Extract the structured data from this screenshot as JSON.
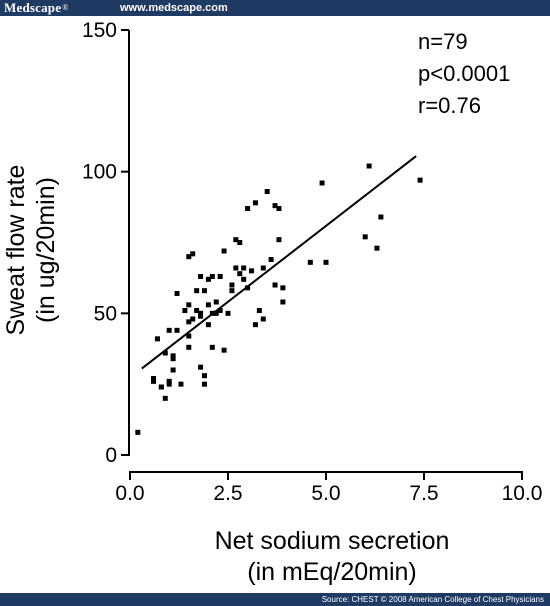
{
  "header": {
    "brand": "Medscape",
    "brand_mark": "®",
    "url": "www.medscape.com",
    "background": "#1f3a63"
  },
  "footer": {
    "source": "Source: CHEST © 2008 American College of Chest Physicians"
  },
  "chart_data": {
    "type": "scatter",
    "xlabel_lines": [
      "Net sodium secretion",
      "(in mEq/20min)"
    ],
    "ylabel_lines": [
      "Sweat flow rate",
      "(in ug/20min)"
    ],
    "xlim": [
      0,
      10
    ],
    "ylim": [
      0,
      150
    ],
    "x_ticks": [
      0,
      2.5,
      5,
      7.5,
      10
    ],
    "x_tick_labels": [
      "0.0",
      "2.5",
      "5.0",
      "7.5",
      "10.0"
    ],
    "y_ticks": [
      0,
      50,
      100,
      150
    ],
    "y_tick_labels": [
      "0",
      "50",
      "100",
      "150"
    ],
    "grid": false,
    "annotations": [
      "n=79",
      "p<0.0001",
      "r=0.76"
    ],
    "regression_line": {
      "x": [
        0.3,
        7.3
      ],
      "y": [
        30.5,
        105.5
      ]
    },
    "points": [
      [
        0.2,
        8
      ],
      [
        0.6,
        26
      ],
      [
        0.6,
        27
      ],
      [
        0.7,
        41
      ],
      [
        0.8,
        24
      ],
      [
        0.8,
        24
      ],
      [
        0.9,
        20
      ],
      [
        0.9,
        36
      ],
      [
        1.0,
        25
      ],
      [
        1.0,
        26
      ],
      [
        1.0,
        44
      ],
      [
        1.1,
        30
      ],
      [
        1.1,
        34
      ],
      [
        1.1,
        35
      ],
      [
        1.2,
        44
      ],
      [
        1.2,
        57
      ],
      [
        1.3,
        25
      ],
      [
        1.4,
        51
      ],
      [
        1.5,
        38
      ],
      [
        1.5,
        42
      ],
      [
        1.5,
        47
      ],
      [
        1.5,
        53
      ],
      [
        1.5,
        70
      ],
      [
        1.6,
        48
      ],
      [
        1.6,
        71
      ],
      [
        1.7,
        51
      ],
      [
        1.7,
        58
      ],
      [
        1.8,
        31
      ],
      [
        1.8,
        49
      ],
      [
        1.8,
        50
      ],
      [
        1.8,
        63
      ],
      [
        1.9,
        25
      ],
      [
        1.9,
        28
      ],
      [
        1.9,
        58
      ],
      [
        2.0,
        46
      ],
      [
        2.0,
        53
      ],
      [
        2.0,
        62
      ],
      [
        2.1,
        38
      ],
      [
        2.1,
        50
      ],
      [
        2.1,
        63
      ],
      [
        2.2,
        50
      ],
      [
        2.2,
        54
      ],
      [
        2.3,
        51
      ],
      [
        2.3,
        63
      ],
      [
        2.4,
        37
      ],
      [
        2.4,
        72
      ],
      [
        2.5,
        50
      ],
      [
        2.6,
        58
      ],
      [
        2.6,
        60
      ],
      [
        2.7,
        66
      ],
      [
        2.7,
        76
      ],
      [
        2.8,
        64
      ],
      [
        2.8,
        75
      ],
      [
        2.9,
        62
      ],
      [
        2.9,
        66
      ],
      [
        3.0,
        59
      ],
      [
        3.0,
        87
      ],
      [
        3.1,
        65
      ],
      [
        3.2,
        46
      ],
      [
        3.2,
        89
      ],
      [
        3.3,
        51
      ],
      [
        3.4,
        48
      ],
      [
        3.4,
        66
      ],
      [
        3.5,
        93
      ],
      [
        3.6,
        69
      ],
      [
        3.7,
        60
      ],
      [
        3.7,
        88
      ],
      [
        3.8,
        87
      ],
      [
        3.8,
        76
      ],
      [
        3.9,
        54
      ],
      [
        3.9,
        59
      ],
      [
        4.6,
        68
      ],
      [
        4.9,
        96
      ],
      [
        5.0,
        68
      ],
      [
        6.0,
        77
      ],
      [
        6.1,
        102
      ],
      [
        6.3,
        73
      ],
      [
        6.4,
        84
      ],
      [
        7.4,
        97
      ]
    ]
  }
}
